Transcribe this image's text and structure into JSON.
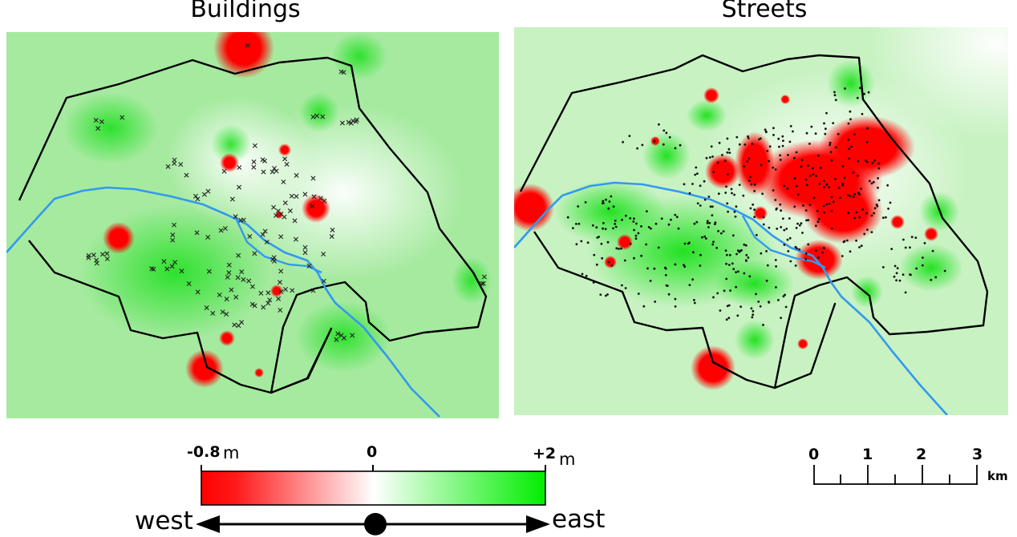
{
  "panels": {
    "buildings": {
      "title": "Buildings"
    },
    "streets": {
      "title": "Streets"
    }
  },
  "colorbar": {
    "min_label": "-0.8",
    "min_unit": "m",
    "mid_label": "0",
    "max_label": "+2",
    "max_unit": "m",
    "min_value": -0.8,
    "max_value": 2,
    "color_negative": "#ff0000",
    "color_zero": "#ffffff",
    "color_positive": "#00ee00"
  },
  "direction": {
    "west_label": "west",
    "east_label": "east"
  },
  "scalebar": {
    "ticks": [
      "0",
      "1",
      "2",
      "3"
    ],
    "unit": "km"
  },
  "colors": {
    "boundary": "#000000",
    "river": "#3399ee",
    "background_field": "#a6eaa0"
  }
}
